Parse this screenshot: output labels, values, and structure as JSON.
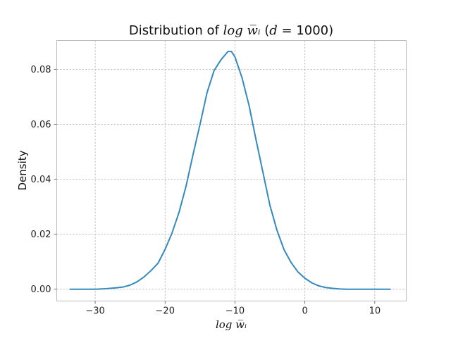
{
  "chart_data": {
    "type": "line",
    "title": {
      "prefix": "Distribution of ",
      "math": "log w̅ᵢ",
      "paren_open": " (",
      "d_symbol": "d",
      "d_value": " = 1000",
      "paren_close": ")"
    },
    "xlabel": "log w̅ᵢ",
    "ylabel": "Density",
    "xlim": [
      -35.5,
      14.5
    ],
    "ylim": [
      -0.0043,
      0.0905
    ],
    "xticks": [
      -30,
      -20,
      -10,
      0,
      10
    ],
    "xtick_labels": [
      "−30",
      "−20",
      "−10",
      "0",
      "10"
    ],
    "yticks": [
      0.0,
      0.02,
      0.04,
      0.06,
      0.08
    ],
    "ytick_labels": [
      "0.00",
      "0.02",
      "0.04",
      "0.06",
      "0.08"
    ],
    "grid": true,
    "line_color": "#348ABD",
    "series": [
      {
        "x": [
          -33.6,
          -32,
          -30,
          -28.5,
          -27,
          -26,
          -25,
          -24,
          -23,
          -22,
          -21,
          -20,
          -19,
          -18,
          -17,
          -16,
          -15,
          -14,
          -13,
          -12,
          -11,
          -10.5,
          -10,
          -9,
          -8,
          -7,
          -6,
          -5,
          -4,
          -3,
          -2,
          -1,
          0,
          1,
          2,
          3,
          4,
          5,
          6,
          8,
          10,
          12.2
        ],
        "y": [
          0.0,
          0.0,
          0.0,
          0.0002,
          0.0005,
          0.0008,
          0.0015,
          0.0027,
          0.0045,
          0.0068,
          0.0095,
          0.0145,
          0.0205,
          0.028,
          0.0375,
          0.049,
          0.06,
          0.0715,
          0.0795,
          0.0835,
          0.0865,
          0.0865,
          0.0845,
          0.077,
          0.067,
          0.0545,
          0.0425,
          0.0305,
          0.0215,
          0.0145,
          0.0098,
          0.0063,
          0.004,
          0.0023,
          0.0012,
          0.0006,
          0.0003,
          0.0001,
          0.0,
          0.0,
          0.0,
          0.0
        ]
      }
    ]
  }
}
